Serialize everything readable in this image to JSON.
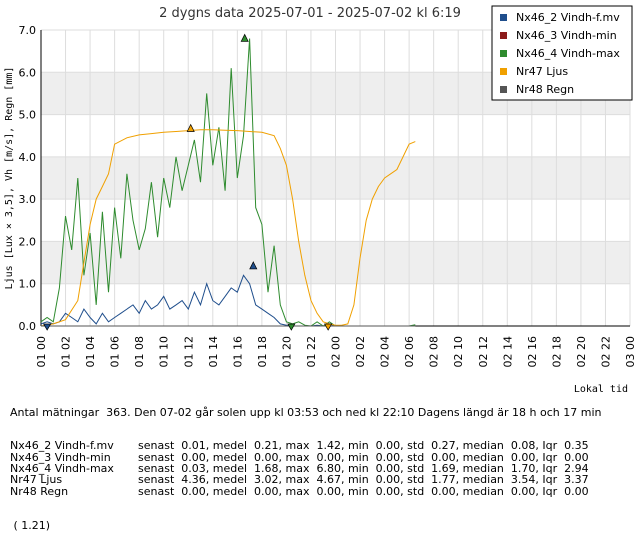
{
  "chart_data": {
    "type": "line",
    "title": "2 dygns data  2025-07-01 - 2025-07-02 kl 6:19",
    "ylabel": "Ljus [Lux × 3,5], Vh [m/s], Regn [mm]",
    "xlabel_note": "Lokal tid",
    "ylim": [
      0,
      7
    ],
    "yticks": [
      "0.0",
      "1.0",
      "2.0",
      "3.0",
      "4.0",
      "5.0",
      "6.0",
      "7.0"
    ],
    "xticks": [
      "01 00",
      "01 02",
      "01 04",
      "01 06",
      "01 08",
      "01 10",
      "01 12",
      "01 14",
      "01 16",
      "01 18",
      "01 20",
      "01 22",
      "02 00",
      "02 02",
      "02 04",
      "02 06",
      "02 08",
      "02 10",
      "02 12",
      "02 14",
      "02 16",
      "02 18",
      "02 20",
      "02 22",
      "03 00"
    ],
    "xlim_hours": [
      0,
      48
    ],
    "grid": true,
    "legend_position": "top-right",
    "series": [
      {
        "name": "Nx46_2 Vindh-f.mv",
        "color": "#1f4e8c",
        "x": [
          0,
          0.5,
          1,
          1.5,
          2,
          2.5,
          3,
          3.5,
          4,
          4.5,
          5,
          5.5,
          6,
          6.5,
          7,
          7.5,
          8,
          8.5,
          9,
          9.5,
          10,
          10.5,
          11,
          11.5,
          12,
          12.5,
          13,
          13.5,
          14,
          14.5,
          15,
          15.5,
          16,
          16.5,
          17,
          17.5,
          18,
          18.5,
          19,
          19.5,
          20,
          20.5,
          21,
          21.5,
          22,
          22.5,
          23,
          23.5,
          24,
          24.5,
          25,
          25.5,
          26,
          26.5,
          27,
          27.5,
          28,
          28.5,
          29,
          29.5,
          30,
          30.5
        ],
        "values": [
          0.05,
          0.1,
          0.05,
          0.1,
          0.3,
          0.2,
          0.1,
          0.4,
          0.2,
          0.05,
          0.3,
          0.1,
          0.2,
          0.3,
          0.4,
          0.5,
          0.3,
          0.6,
          0.4,
          0.5,
          0.7,
          0.4,
          0.5,
          0.6,
          0.4,
          0.8,
          0.5,
          1.0,
          0.6,
          0.5,
          0.7,
          0.9,
          0.8,
          1.2,
          1.0,
          0.5,
          0.4,
          0.3,
          0.2,
          0.05,
          0.02,
          0,
          0,
          0,
          0,
          0.02,
          0,
          0.05,
          0,
          0,
          0,
          0,
          0,
          0,
          0,
          0,
          0,
          0,
          0,
          0,
          0,
          0.01
        ]
      },
      {
        "name": "Nx46_3 Vindh-min",
        "color": "#8b1a1a",
        "x": [
          0,
          6,
          12,
          18,
          24,
          30.5
        ],
        "values": [
          0,
          0,
          0,
          0,
          0,
          0
        ]
      },
      {
        "name": "Nx46_4 Vindh-max",
        "color": "#2e8b2e",
        "x": [
          0,
          0.5,
          1,
          1.5,
          2,
          2.5,
          3,
          3.5,
          4,
          4.5,
          5,
          5.5,
          6,
          6.5,
          7,
          7.5,
          8,
          8.5,
          9,
          9.5,
          10,
          10.5,
          11,
          11.5,
          12,
          12.5,
          13,
          13.5,
          14,
          14.5,
          15,
          15.5,
          16,
          16.5,
          17,
          17.5,
          18,
          18.5,
          19,
          19.5,
          20,
          20.5,
          21,
          21.5,
          22,
          22.5,
          23,
          23.5,
          24,
          24.5,
          25,
          25.5,
          26,
          26.5,
          27,
          27.5,
          28,
          28.5,
          29,
          29.5,
          30,
          30.5
        ],
        "values": [
          0.1,
          0.2,
          0.1,
          0.9,
          2.6,
          1.8,
          3.5,
          1.2,
          2.2,
          0.5,
          2.7,
          0.8,
          2.8,
          1.6,
          3.6,
          2.5,
          1.8,
          2.3,
          3.4,
          2.1,
          3.5,
          2.8,
          4.0,
          3.2,
          3.8,
          4.4,
          3.4,
          5.5,
          3.8,
          4.7,
          3.2,
          6.1,
          3.5,
          4.5,
          6.8,
          2.8,
          2.4,
          0.8,
          1.9,
          0.5,
          0.1,
          0.05,
          0.1,
          0.02,
          0,
          0.1,
          0,
          0.1,
          0,
          0,
          0,
          0,
          0,
          0,
          0,
          0,
          0,
          0,
          0,
          0,
          0,
          0.03
        ]
      },
      {
        "name": "Nr47 Ljus",
        "color": "#f0a000",
        "x": [
          0,
          1,
          2,
          3,
          3.5,
          4,
          4.5,
          5,
          5.5,
          6,
          7,
          8,
          9,
          10,
          11,
          12,
          13,
          14,
          15,
          16,
          17,
          18,
          19,
          19.5,
          20,
          20.5,
          21,
          21.5,
          22,
          22.5,
          23,
          23.5,
          24,
          24.5,
          25,
          25.5,
          26,
          26.5,
          27,
          27.5,
          28,
          28.5,
          29,
          29.5,
          30,
          30.5
        ],
        "values": [
          0,
          0.05,
          0.15,
          0.6,
          1.5,
          2.4,
          3.0,
          3.3,
          3.6,
          4.3,
          4.45,
          4.52,
          4.55,
          4.58,
          4.6,
          4.62,
          4.64,
          4.64,
          4.63,
          4.62,
          4.6,
          4.58,
          4.5,
          4.2,
          3.8,
          3.0,
          2.0,
          1.2,
          0.6,
          0.3,
          0.1,
          0.05,
          0.02,
          0.02,
          0.05,
          0.5,
          1.6,
          2.5,
          3.0,
          3.3,
          3.5,
          3.6,
          3.7,
          4.0,
          4.3,
          4.36
        ]
      },
      {
        "name": "Nr48 Regn",
        "color": "#555555",
        "x": [
          0,
          30.5
        ],
        "values": [
          0,
          0
        ]
      }
    ],
    "markers": [
      {
        "series": "Nx46_4 Vindh-max",
        "kind": "max",
        "x": 16.6,
        "y": 6.8
      },
      {
        "series": "Nx46_4 Vindh-max",
        "kind": "min",
        "x": 20.4,
        "y": 0
      },
      {
        "series": "Nr47 Ljus",
        "kind": "max",
        "x": 12.2,
        "y": 4.67
      },
      {
        "series": "Nr47 Ljus",
        "kind": "min",
        "x": 23.4,
        "y": 0
      },
      {
        "series": "Nx46_2 Vindh-f.mv",
        "kind": "max",
        "x": 17.3,
        "y": 1.42
      },
      {
        "series": "Nx46_2 Vindh-f.mv",
        "kind": "min",
        "x": 0.5,
        "y": 0
      }
    ]
  },
  "stats": {
    "header": "Antal mätningar  363. Den 07-02 går solen upp kl 03:53 och ned kl 22:10 Dagens längd är 18 h och 17 min",
    "rows": [
      {
        "name": "Nx46_2 Vindh-f.mv",
        "text": "       senast  0.01, medel  0.21, max  1.42, min  0.00, std  0.27, median  0.08, Iqr  0.35"
      },
      {
        "name": "Nx46_3 Vindh-min",
        "text": "        senast  0.00, medel  0.00, max  0.00, min  0.00, std  0.00, median  0.00, Iqr  0.00"
      },
      {
        "name": "Nx46_4 Vindh-max",
        "text": "         senast  0.03, medel  1.68, max  6.80, min  0.00, std  1.69, median  1.70, Iqr  2.94"
      },
      {
        "name": "Nr47 Ljus",
        "text": "        senast  4.36, medel  3.02, max  4.67, min  0.00, std  1.77, median  3.54, Iqr  3.37"
      },
      {
        "name": "Nr48 Regn",
        "text": "          senast  0.00, medel  0.00, max  0.00, min  0.00, std  0.00, median  0.00, Iqr  0.00"
      }
    ],
    "version": " ( 1.21)"
  }
}
